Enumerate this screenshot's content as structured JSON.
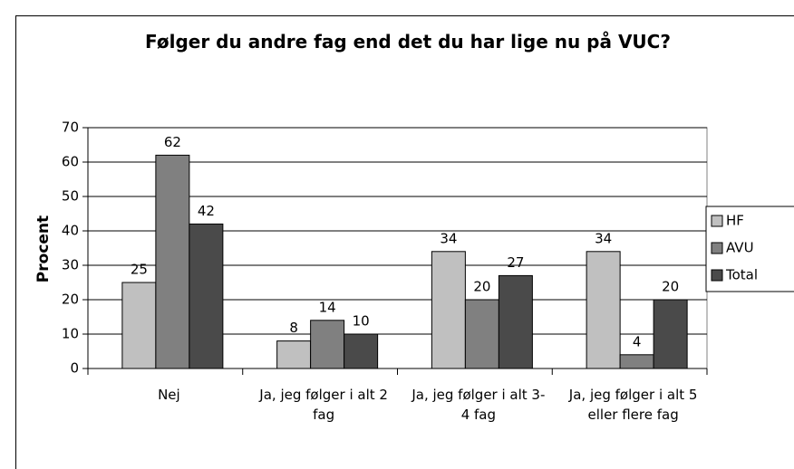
{
  "chart_data": {
    "type": "bar",
    "title": "Følger du andre fag end det du har lige nu på VUC?",
    "y_label": "Procent",
    "categories": [
      "Nej",
      "Ja, jeg følger i alt 2 fag",
      "Ja, jeg følger i alt 3-4 fag",
      "Ja, jeg følger i alt 5 eller flere fag"
    ],
    "series": [
      {
        "name": "HF",
        "color": "#c0c0c0",
        "values": [
          25,
          8,
          34,
          34
        ]
      },
      {
        "name": "AVU",
        "color": "#808080",
        "values": [
          62,
          14,
          20,
          4
        ]
      },
      {
        "name": "Total",
        "color": "#4a4a4a",
        "values": [
          42,
          10,
          27,
          20
        ]
      }
    ],
    "ylim": [
      0,
      70
    ],
    "yticks": [
      0,
      10,
      20,
      30,
      40,
      50,
      60,
      70
    ],
    "grid": true,
    "legend": "right"
  }
}
